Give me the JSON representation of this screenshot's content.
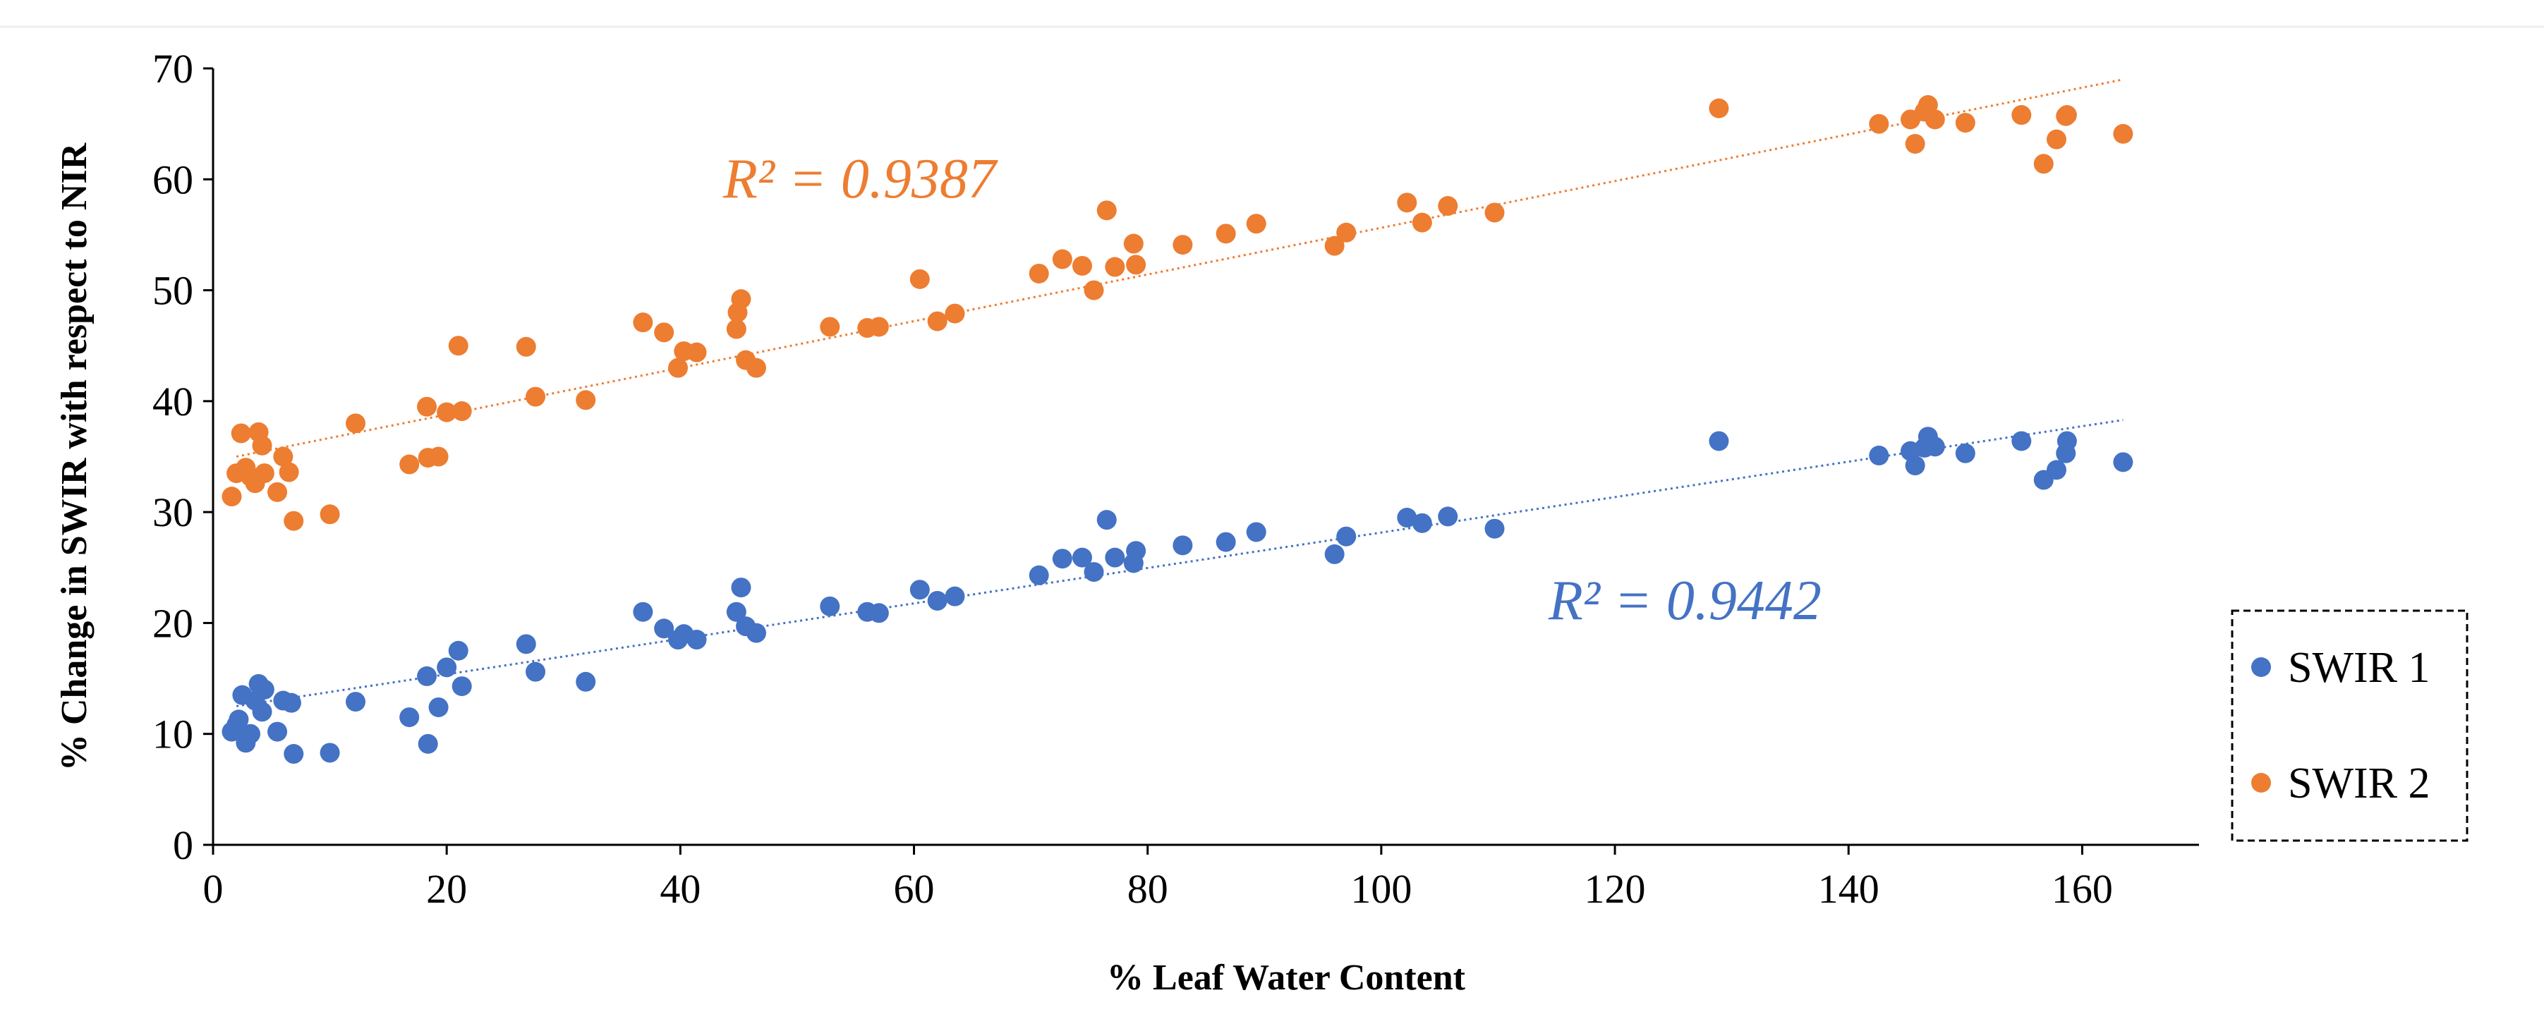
{
  "chart_data": {
    "type": "scatter",
    "title": "",
    "xlabel": "% Leaf Water Content",
    "ylabel": "% Change in SWIR with respect to NIR",
    "xlim": [
      0,
      170
    ],
    "ylim": [
      0,
      70
    ],
    "xticks": [
      "0",
      "20",
      "40",
      "60",
      "80",
      "100",
      "120",
      "140",
      "160"
    ],
    "yticks": [
      "0",
      "10",
      "20",
      "30",
      "40",
      "50",
      "60",
      "70"
    ],
    "grid": false,
    "legend_position": "right",
    "series": [
      {
        "name": "SWIR 1",
        "color": "#4472C4",
        "r2_label": "R² = 0.9442",
        "trend": {
          "x0": 2,
          "x1": 163.5,
          "y0": 12.5,
          "y1": 38.3
        },
        "x": [
          1.6,
          2.0,
          2.2,
          2.5,
          2.8,
          3.2,
          3.6,
          3.9,
          4.2,
          4.4,
          5.5,
          6.0,
          6.7,
          6.9,
          10.0,
          12.2,
          16.8,
          18.3,
          18.4,
          19.3,
          20.0,
          21.0,
          21.3,
          26.8,
          27.6,
          31.9,
          36.8,
          38.6,
          39.8,
          40.3,
          41.4,
          44.8,
          45.2,
          45.6,
          46.5,
          52.8,
          56.0,
          57.0,
          60.5,
          62.0,
          63.5,
          70.7,
          72.7,
          74.4,
          75.4,
          76.5,
          77.2,
          78.8,
          79.0,
          83.0,
          86.7,
          89.3,
          96.0,
          97.0,
          102.2,
          103.5,
          105.7,
          109.7,
          128.9,
          142.6,
          145.3,
          145.7,
          146.5,
          146.8,
          147.4,
          150.0,
          154.8,
          156.7,
          157.8,
          158.6,
          158.7,
          163.5
        ],
        "y": [
          10.2,
          10.8,
          11.3,
          13.5,
          9.2,
          10.0,
          13.0,
          14.5,
          12.0,
          14.0,
          10.2,
          13.0,
          12.8,
          8.2,
          8.3,
          12.9,
          11.5,
          15.2,
          9.1,
          12.4,
          16.0,
          17.5,
          14.3,
          18.1,
          15.6,
          14.7,
          21.0,
          19.5,
          18.5,
          19.0,
          18.5,
          21.0,
          23.2,
          19.7,
          19.1,
          21.5,
          21.0,
          20.9,
          23.0,
          22.0,
          22.4,
          24.3,
          25.8,
          25.9,
          24.6,
          29.3,
          25.9,
          25.4,
          26.5,
          27.0,
          27.3,
          28.2,
          26.2,
          27.8,
          29.5,
          29.0,
          29.6,
          28.5,
          36.4,
          35.1,
          35.5,
          34.2,
          35.8,
          36.8,
          35.9,
          35.3,
          36.4,
          32.9,
          33.8,
          35.3,
          36.4,
          34.5
        ]
      },
      {
        "name": "SWIR 2",
        "color": "#ED7D31",
        "r2_label": "R² = 0.9387",
        "trend": {
          "x0": 2,
          "x1": 163.5,
          "y0": 35.0,
          "y1": 69.0
        },
        "x": [
          1.6,
          2.0,
          2.4,
          2.8,
          3.2,
          3.6,
          3.9,
          4.2,
          4.4,
          5.5,
          6.0,
          6.5,
          6.9,
          10.0,
          12.2,
          16.8,
          18.3,
          18.4,
          19.3,
          20.0,
          21.0,
          21.3,
          26.8,
          27.6,
          31.9,
          36.8,
          38.6,
          39.8,
          40.3,
          41.4,
          44.8,
          44.9,
          45.2,
          45.6,
          46.5,
          52.8,
          56.0,
          57.0,
          60.5,
          62.0,
          63.5,
          70.7,
          72.7,
          74.4,
          75.4,
          76.5,
          77.2,
          78.8,
          79.0,
          83.0,
          86.7,
          89.3,
          96.0,
          97.0,
          102.2,
          103.5,
          105.7,
          109.7,
          128.9,
          142.6,
          145.3,
          145.7,
          146.5,
          146.8,
          147.4,
          150.0,
          154.8,
          156.7,
          157.8,
          158.6,
          158.7,
          163.5
        ],
        "y": [
          31.4,
          33.5,
          37.1,
          34.0,
          33.2,
          32.6,
          37.2,
          36.0,
          33.5,
          31.8,
          35.0,
          33.6,
          29.2,
          29.8,
          38.0,
          34.3,
          39.5,
          34.9,
          35.0,
          39.0,
          45.0,
          39.1,
          44.9,
          40.4,
          40.1,
          47.1,
          46.2,
          43.0,
          44.5,
          44.4,
          46.5,
          48.0,
          49.2,
          43.7,
          43.0,
          46.7,
          46.6,
          46.7,
          51.0,
          47.2,
          47.9,
          51.5,
          52.8,
          52.2,
          50.0,
          57.2,
          52.1,
          54.2,
          52.3,
          54.1,
          55.1,
          56.0,
          54.0,
          55.2,
          57.9,
          56.1,
          57.6,
          57.0,
          66.4,
          65.0,
          65.4,
          63.2,
          66.1,
          66.7,
          65.4,
          65.1,
          65.8,
          61.4,
          63.6,
          65.7,
          65.8,
          64.1
        ]
      }
    ]
  }
}
